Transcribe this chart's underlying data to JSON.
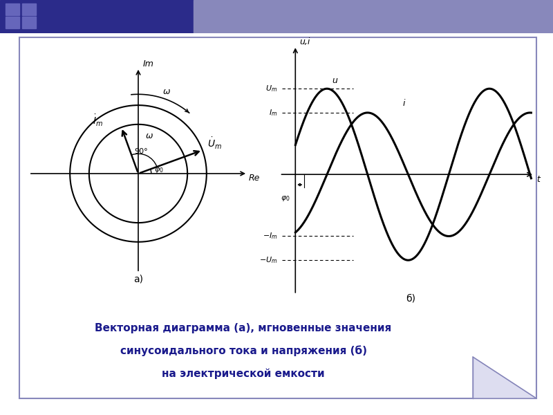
{
  "fig_width": 8.0,
  "fig_height": 6.0,
  "bg_color": "#ffffff",
  "border_color": "#8888bb",
  "title_lines": [
    "Векторная диаграмма (а), мгновенные значения",
    "синусоидального тока и напряжения (б)",
    "на электрической емкости"
  ],
  "title_color": "#1a1a8c",
  "title_fontsize": 11,
  "Um": 1.0,
  "Im": 0.72,
  "phi0_deg": 20,
  "header_color1": "#3333aa",
  "header_color2": "#9999cc"
}
